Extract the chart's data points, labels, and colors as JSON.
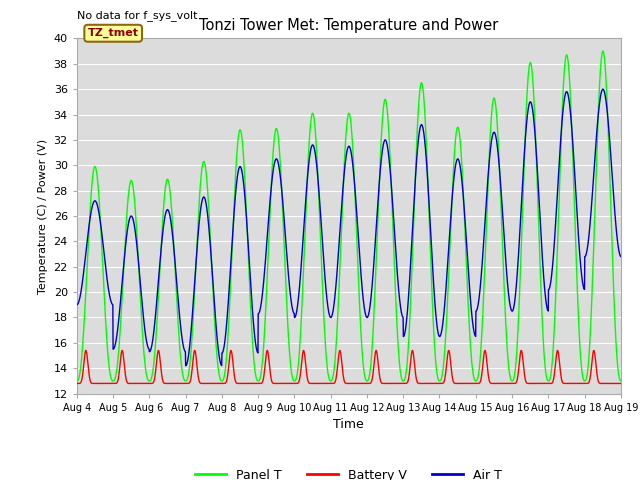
{
  "title": "Tonzi Tower Met: Temperature and Power",
  "top_left_text": "No data for f_sys_volt",
  "ylabel": "Temperature (C) / Power (V)",
  "xlabel": "Time",
  "legend_label": "TZ_tmet",
  "ylim": [
    12,
    40
  ],
  "yticks": [
    12,
    14,
    16,
    18,
    20,
    22,
    24,
    26,
    28,
    30,
    32,
    34,
    36,
    38,
    40
  ],
  "x_tick_labels": [
    "Aug 4",
    "Aug 5",
    "Aug 6",
    "Aug 7",
    "Aug 8",
    "Aug 9",
    "Aug 10",
    "Aug 11",
    "Aug 12",
    "Aug 13",
    "Aug 14",
    "Aug 15",
    "Aug 16",
    "Aug 17",
    "Aug 18",
    "Aug 19"
  ],
  "panel_color": "#00FF00",
  "battery_color": "#FF0000",
  "air_color": "#0000CC",
  "bg_color": "#DCDCDC",
  "n_days": 15,
  "pts_per_day": 144,
  "panel_day_peaks": [
    29.9,
    28.8,
    28.9,
    30.3,
    32.8,
    32.9,
    34.1,
    34.1,
    35.2,
    36.5,
    33.0,
    35.3,
    38.1,
    38.7,
    39.0
  ],
  "air_day_peaks": [
    27.2,
    26.0,
    26.5,
    27.5,
    29.9,
    30.5,
    31.6,
    31.5,
    32.0,
    33.2,
    30.5,
    32.6,
    35.0,
    35.8,
    36.0
  ],
  "air_day_nights": [
    19.0,
    15.5,
    15.3,
    14.2,
    15.2,
    18.3,
    18.0,
    18.0,
    18.0,
    16.5,
    16.5,
    18.5,
    18.5,
    20.2,
    22.8
  ],
  "panel_day_nights": [
    13.0,
    13.0,
    13.0,
    13.0,
    13.0,
    13.0,
    13.0,
    13.0,
    13.0,
    13.0,
    13.0,
    13.0,
    13.0,
    13.0,
    13.0
  ],
  "battery_base": 12.8,
  "battery_peak": 15.4
}
